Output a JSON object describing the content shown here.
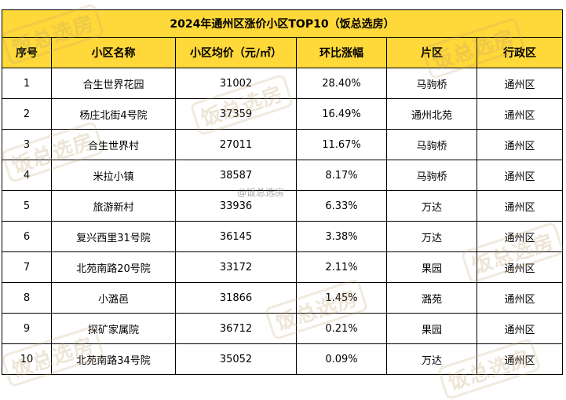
{
  "table": {
    "title": "2024年通州区涨价小区TOP10（饭总选房）",
    "headers": [
      "序号",
      "小区名称",
      "小区均价（元/㎡）",
      "环比涨幅",
      "片区",
      "行政区"
    ],
    "rows": [
      [
        "1",
        "合生世界花园",
        "31002",
        "28.40%",
        "马驹桥",
        "通州区"
      ],
      [
        "2",
        "杨庄北街4号院",
        "37359",
        "16.49%",
        "通州北苑",
        "通州区"
      ],
      [
        "3",
        "合生世界村",
        "27011",
        "11.67%",
        "马驹桥",
        "通州区"
      ],
      [
        "4",
        "米拉小镇",
        "38587",
        "8.17%",
        "马驹桥",
        "通州区"
      ],
      [
        "5",
        "旅游新村",
        "33936",
        "6.33%",
        "万达",
        "通州区"
      ],
      [
        "6",
        "复兴西里31号院",
        "36145",
        "3.38%",
        "万达",
        "通州区"
      ],
      [
        "7",
        "北苑南路20号院",
        "33172",
        "2.11%",
        "果园",
        "通州区"
      ],
      [
        "8",
        "小潞邑",
        "31866",
        "1.45%",
        "潞苑",
        "通州区"
      ],
      [
        "9",
        "探矿家属院",
        "36712",
        "0.21%",
        "果园",
        "通州区"
      ],
      [
        "10",
        "北苑南路34号院",
        "35052",
        "0.09%",
        "万达",
        "通州区"
      ]
    ]
  },
  "watermarks": [
    "饭总选房",
    "饭总选房",
    "饭总选房",
    "饭总选房",
    "饭总选房",
    "饭总选房",
    "饭总选房",
    "饭总选房"
  ],
  "weibo_watermark": "@饭总选房",
  "colors": {
    "header_bg": "#ffd83a",
    "watermark": "#bea06e"
  }
}
